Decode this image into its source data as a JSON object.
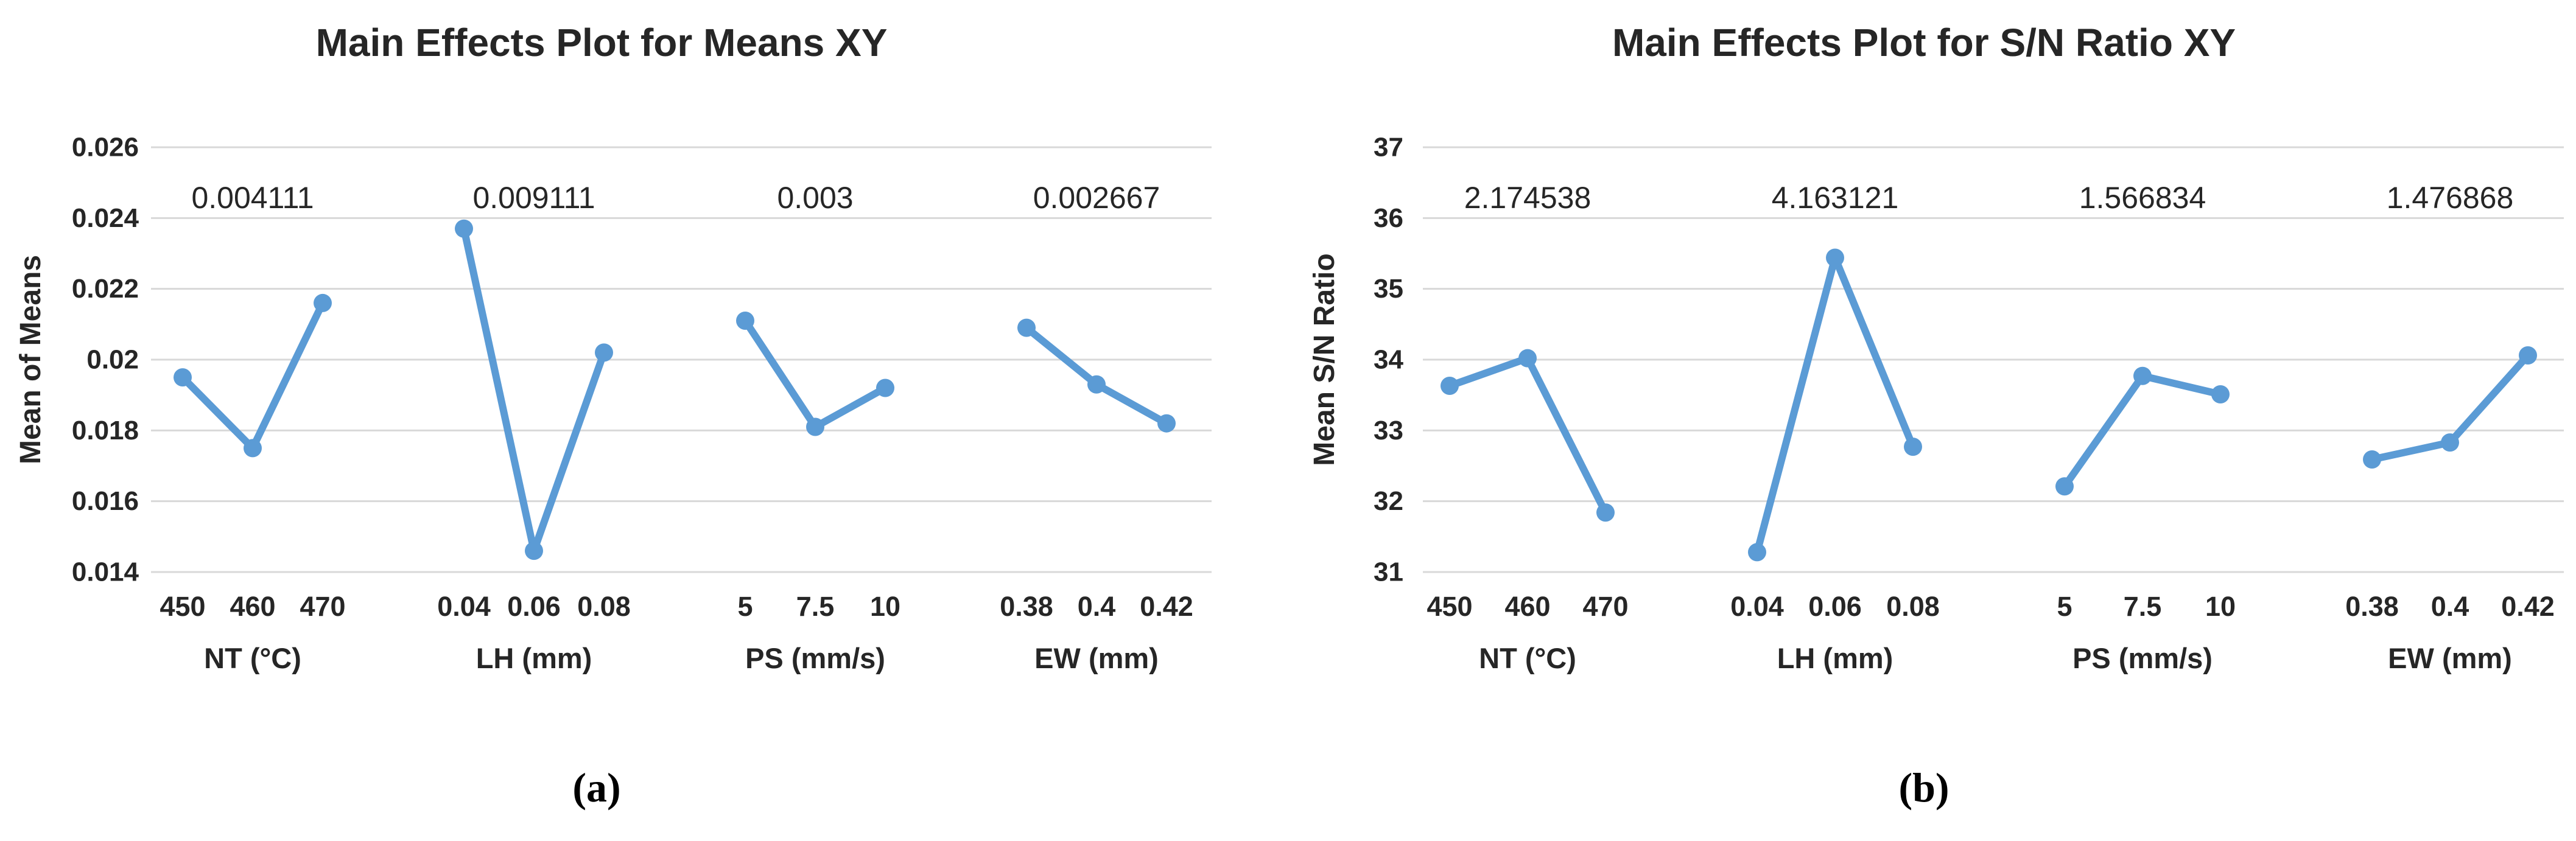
{
  "figure": {
    "panel_a_label": "(a)",
    "panel_b_label": "(b)"
  },
  "colors": {
    "series_blue": "#5B9BD5",
    "gridline": "#D8D8D8",
    "annotation_gray": "#757575",
    "text_dark": "#262626"
  },
  "chart_data": [
    {
      "type": "line",
      "id": "means",
      "title": "Main Effects Plot for Means XY",
      "ylabel": "Mean of Means",
      "xlabel": "",
      "ylim": [
        0.014,
        0.026
      ],
      "grid": true,
      "legend_position": "none",
      "yticks": [
        "0.026",
        "0.024",
        "0.022",
        "0.02",
        "0.018",
        "0.016",
        "0.014"
      ],
      "groups": [
        {
          "label": "NT (°C)",
          "categories": [
            "450",
            "460",
            "470"
          ],
          "values": [
            0.0195,
            0.0175,
            0.0216
          ],
          "annotation": "0.004111"
        },
        {
          "label": "LH (mm)",
          "categories": [
            "0.04",
            "0.06",
            "0.08"
          ],
          "values": [
            0.0237,
            0.0146,
            0.0202
          ],
          "annotation": "0.009111"
        },
        {
          "label": "PS (mm/s)",
          "categories": [
            "5",
            "7.5",
            "10"
          ],
          "values": [
            0.0211,
            0.0181,
            0.0192
          ],
          "annotation": "0.003"
        },
        {
          "label": "EW (mm)",
          "categories": [
            "0.38",
            "0.4",
            "0.42"
          ],
          "values": [
            0.0209,
            0.0193,
            0.0182
          ],
          "annotation": "0.002667"
        }
      ]
    },
    {
      "type": "line",
      "id": "sn-ratio",
      "title": "Main Effects Plot for S/N Ratio XY",
      "ylabel": "Mean S/N Ratio",
      "xlabel": "",
      "ylim": [
        31,
        37
      ],
      "grid": true,
      "legend_position": "none",
      "yticks": [
        "37",
        "36",
        "35",
        "34",
        "33",
        "32",
        "31"
      ],
      "groups": [
        {
          "label": "NT (°C)",
          "categories": [
            "450",
            "460",
            "470"
          ],
          "values": [
            33.63,
            34.02,
            31.84
          ],
          "annotation": "2.174538"
        },
        {
          "label": "LH (mm)",
          "categories": [
            "0.04",
            "0.06",
            "0.08"
          ],
          "values": [
            31.28,
            35.44,
            32.77
          ],
          "annotation": "4.163121"
        },
        {
          "label": "PS (mm/s)",
          "categories": [
            "5",
            "7.5",
            "10"
          ],
          "values": [
            32.21,
            33.77,
            33.51
          ],
          "annotation": "1.566834"
        },
        {
          "label": "EW (mm)",
          "categories": [
            "0.38",
            "0.4",
            "0.42"
          ],
          "values": [
            32.59,
            32.83,
            34.06
          ],
          "annotation": "1.476868"
        }
      ]
    }
  ]
}
